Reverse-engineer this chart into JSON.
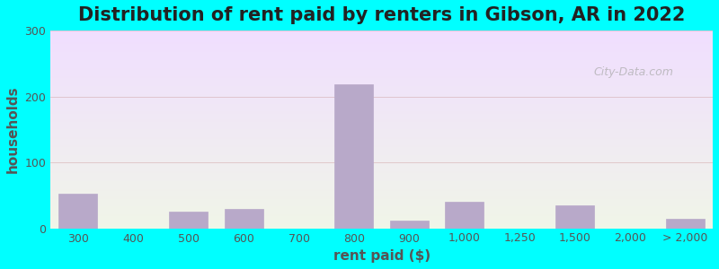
{
  "title": "Distribution of rent paid by renters in Gibson, AR in 2022",
  "xlabel": "rent paid ($)",
  "ylabel": "households",
  "bar_color": "#b8a9c9",
  "bar_edgecolor": "#b8a9c9",
  "background_outer": "#00ffff",
  "background_inner_top": "#f0f5e8",
  "background_inner_bottom": "#e8d5e8",
  "ylim": [
    0,
    300
  ],
  "yticks": [
    0,
    100,
    200,
    300
  ],
  "categories": [
    "300",
    "400",
    "500",
    "600",
    "700",
    "800",
    "900",
    "1,000",
    "1,250",
    "1,500",
    "2,000",
    "> 2,000"
  ],
  "values": [
    52,
    0,
    25,
    30,
    0,
    218,
    12,
    40,
    0,
    35,
    0,
    15
  ],
  "positions": [
    0,
    1,
    2,
    3,
    4,
    5,
    6,
    7,
    8,
    9,
    10,
    11
  ],
  "title_fontsize": 15,
  "axis_label_fontsize": 11,
  "tick_fontsize": 9,
  "title_color": "#222222",
  "axis_label_color": "#555555",
  "tick_color": "#555555",
  "watermark": "City-Data.com"
}
